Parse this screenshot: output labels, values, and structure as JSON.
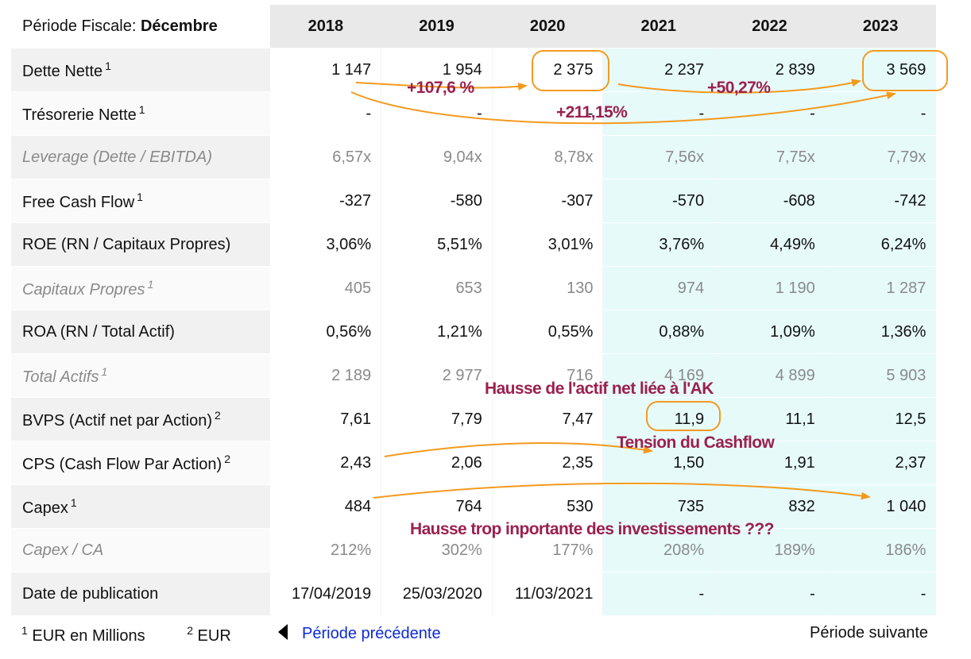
{
  "header": {
    "period_label": "Période Fiscale:",
    "period_value": "Décembre",
    "years": [
      "2018",
      "2019",
      "2020",
      "2021",
      "2022",
      "2023"
    ]
  },
  "rows": [
    {
      "label": "Dette Nette",
      "sup": "1",
      "italic": false,
      "values": [
        "1 147",
        "1 954",
        "2 375",
        "2 237",
        "2 839",
        "3 569"
      ]
    },
    {
      "label": "Trésorerie Nette",
      "sup": "1",
      "italic": false,
      "values": [
        "-",
        "-",
        "-",
        "-",
        "-",
        "-"
      ]
    },
    {
      "label": "Leverage (Dette / EBITDA)",
      "sup": "",
      "italic": true,
      "values": [
        "6,57x",
        "9,04x",
        "8,78x",
        "7,56x",
        "7,75x",
        "7,79x"
      ]
    },
    {
      "label": "Free Cash Flow",
      "sup": "1",
      "italic": false,
      "values": [
        "-327",
        "-580",
        "-307",
        "-570",
        "-608",
        "-742"
      ]
    },
    {
      "label": "ROE (RN / Capitaux Propres)",
      "sup": "",
      "italic": false,
      "values": [
        "3,06%",
        "5,51%",
        "3,01%",
        "3,76%",
        "4,49%",
        "6,24%"
      ]
    },
    {
      "label": "Capitaux Propres",
      "sup": "1",
      "italic": true,
      "values": [
        "405",
        "653",
        "130",
        "974",
        "1 190",
        "1 287"
      ]
    },
    {
      "label": "ROA (RN / Total Actif)",
      "sup": "",
      "italic": false,
      "values": [
        "0,56%",
        "1,21%",
        "0,55%",
        "0,88%",
        "1,09%",
        "1,36%"
      ]
    },
    {
      "label": "Total Actifs",
      "sup": "1",
      "italic": true,
      "values": [
        "2 189",
        "2 977",
        "716",
        "4 169",
        "4 899",
        "5 903"
      ]
    },
    {
      "label": "BVPS (Actif net par Action)",
      "sup": "2",
      "italic": false,
      "values": [
        "7,61",
        "7,79",
        "7,47",
        "11,9",
        "11,1",
        "12,5"
      ]
    },
    {
      "label": "CPS (Cash Flow Par Action)",
      "sup": "2",
      "italic": false,
      "values": [
        "2,43",
        "2,06",
        "2,35",
        "1,50",
        "1,91",
        "2,37"
      ]
    },
    {
      "label": "Capex",
      "sup": "1",
      "italic": false,
      "values": [
        "484",
        "764",
        "530",
        "735",
        "832",
        "1 040"
      ]
    },
    {
      "label": "Capex / CA",
      "sup": "",
      "italic": true,
      "values": [
        "212%",
        "302%",
        "177%",
        "208%",
        "189%",
        "186%"
      ]
    },
    {
      "label": "Date de publication",
      "sup": "",
      "italic": false,
      "values": [
        "17/04/2019",
        "25/03/2020",
        "11/03/2021",
        "-",
        "-",
        "-"
      ]
    }
  ],
  "footer": {
    "note1_sup": "1",
    "note1_text": "EUR en Millions",
    "note2_sup": "2",
    "note2_text": "EUR",
    "prev_label": "Période précédente",
    "next_label": "Période suivante"
  },
  "annotations": {
    "pct_1": "+107,6 %",
    "pct_2": "+50,27%",
    "pct_3": "+211,15%",
    "note_actif": "Hausse de l'actif net liée à l'AK",
    "note_cashflow": "Tension du Cashflow",
    "note_capex": "Hausse trop inportante des investissements ???",
    "color_annot": "#9b2050",
    "color_arrow": "#f39a1e"
  },
  "colors": {
    "header_bg": "#e9e9e9",
    "forecast_bg": "#e6fafa",
    "link": "#0b2ad6"
  }
}
